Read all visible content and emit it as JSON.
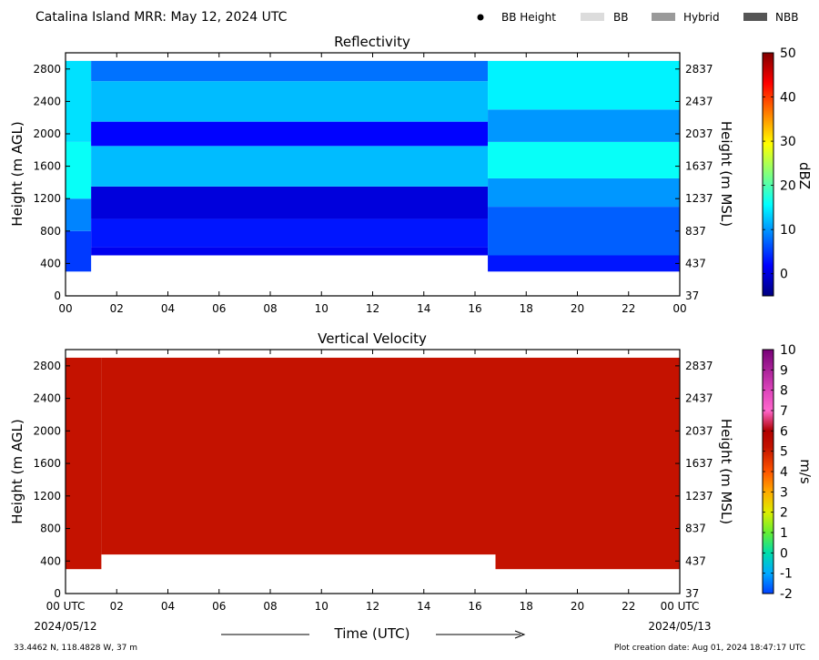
{
  "header": {
    "title": "Catalina Island MRR:  May 12, 2024 UTC",
    "legend": [
      {
        "label": "BB Height",
        "swatch": "dot",
        "color": "#000000"
      },
      {
        "label": "BB",
        "swatch": "rect",
        "color": "#dcdcdc"
      },
      {
        "label": "Hybrid",
        "swatch": "rect",
        "color": "#9a9a9a"
      },
      {
        "label": "NBB",
        "swatch": "rect",
        "color": "#555555"
      }
    ]
  },
  "footer": {
    "coords": "33.4462 N, 118.4828 W, 37 m",
    "creation": "Plot creation date: Aug 01, 2024 18:47:17 UTC",
    "time_label": "Time (UTC)",
    "start_date": "2024/05/12",
    "end_date": "2024/05/13"
  },
  "chart_data": [
    {
      "type": "heatmap",
      "title": "Reflectivity",
      "ylabel": "Height (m AGL)",
      "ylabel_right": "Height (m MSL)",
      "xlim": [
        0,
        24
      ],
      "ylim": [
        0,
        3000
      ],
      "x_ticks": [
        "00",
        "02",
        "04",
        "06",
        "08",
        "10",
        "12",
        "14",
        "16",
        "18",
        "20",
        "22",
        "00"
      ],
      "y_ticks": [
        0,
        400,
        800,
        1200,
        1600,
        2000,
        2400,
        2800
      ],
      "y_ticks_right": [
        37,
        437,
        837,
        1237,
        1637,
        2037,
        2437,
        2837
      ],
      "colorbar": {
        "label": "dBZ",
        "min": -5,
        "max": 50,
        "ticks": [
          0,
          10,
          20,
          30,
          40,
          50
        ]
      },
      "data_top": 2900,
      "bands": [
        {
          "t0": 0,
          "t1": 1,
          "layers": [
            {
              "h0": 300,
              "h1": 800,
              "dbz": 5
            },
            {
              "h0": 800,
              "h1": 1200,
              "dbz": 9
            },
            {
              "h0": 1200,
              "h1": 1900,
              "dbz": 16
            },
            {
              "h0": 1900,
              "h1": 2900,
              "dbz": 14
            }
          ]
        },
        {
          "t0": 1,
          "t1": 16.5,
          "layers": [
            {
              "h0": 500,
              "h1": 600,
              "dbz": 1
            },
            {
              "h0": 600,
              "h1": 950,
              "dbz": 3
            },
            {
              "h0": 950,
              "h1": 1350,
              "dbz": 0
            },
            {
              "h0": 1350,
              "h1": 1850,
              "dbz": 12
            },
            {
              "h0": 1850,
              "h1": 2150,
              "dbz": 2
            },
            {
              "h0": 2150,
              "h1": 2650,
              "dbz": 12
            },
            {
              "h0": 2650,
              "h1": 2900,
              "dbz": 8
            }
          ]
        },
        {
          "t0": 16.5,
          "t1": 24,
          "layers": [
            {
              "h0": 300,
              "h1": 500,
              "dbz": 3
            },
            {
              "h0": 500,
              "h1": 1100,
              "dbz": 7
            },
            {
              "h0": 1100,
              "h1": 1450,
              "dbz": 10
            },
            {
              "h0": 1450,
              "h1": 1900,
              "dbz": 16
            },
            {
              "h0": 1900,
              "h1": 2300,
              "dbz": 10
            },
            {
              "h0": 2300,
              "h1": 2900,
              "dbz": 15
            }
          ]
        }
      ]
    },
    {
      "type": "heatmap",
      "title": "Vertical Velocity",
      "ylabel": "Height (m AGL)",
      "ylabel_right": "Height (m MSL)",
      "xlim": [
        0,
        24
      ],
      "ylim": [
        0,
        3000
      ],
      "x_ticks": [
        "00 UTC",
        "02",
        "04",
        "06",
        "08",
        "10",
        "12",
        "14",
        "16",
        "18",
        "20",
        "22",
        "00 UTC"
      ],
      "y_ticks": [
        0,
        400,
        800,
        1200,
        1600,
        2000,
        2400,
        2800
      ],
      "y_ticks_right": [
        37,
        437,
        837,
        1237,
        1637,
        2037,
        2437,
        2837
      ],
      "colorbar": {
        "label": "m/s",
        "min": -2,
        "max": 10,
        "ticks": [
          -2,
          -1,
          0,
          1,
          2,
          3,
          4,
          5,
          6,
          7,
          8,
          9,
          10
        ]
      },
      "data_top": 2900,
      "field_value": 6,
      "bottom_edge": [
        {
          "t0": 0,
          "t1": 1.4,
          "h": 300
        },
        {
          "t0": 1.4,
          "t1": 16.8,
          "h": 480
        },
        {
          "t0": 16.8,
          "t1": 24,
          "h": 300
        }
      ]
    }
  ]
}
